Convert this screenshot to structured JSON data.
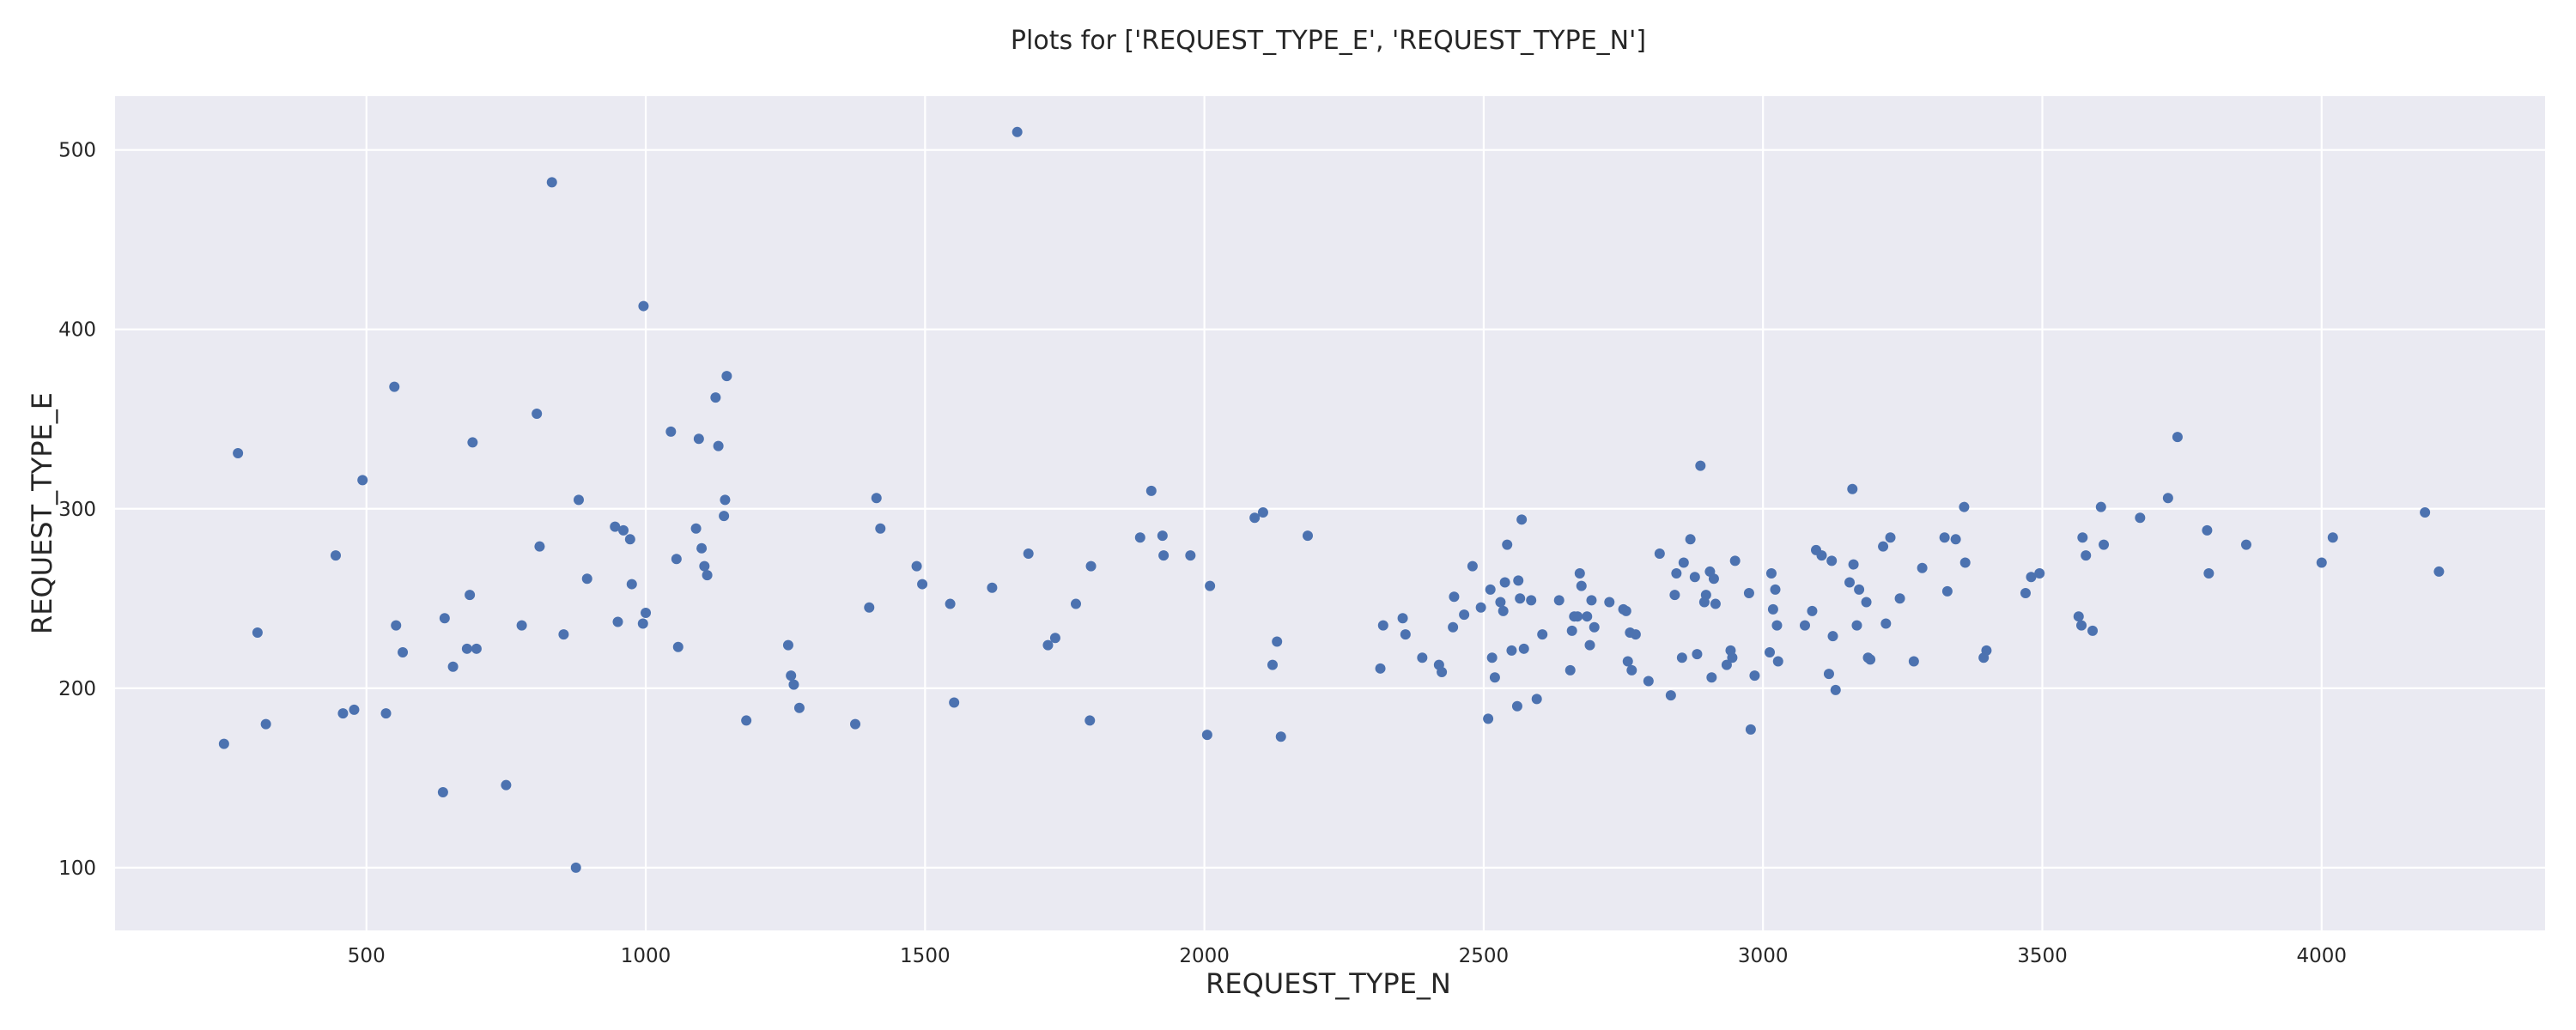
{
  "chart_data": {
    "type": "scatter",
    "title": "Plots for ['REQUEST_TYPE_E', 'REQUEST_TYPE_N']",
    "xlabel": "REQUEST_TYPE_N",
    "ylabel": "REQUEST_TYPE_E",
    "xlim": [
      50,
      4400
    ],
    "ylim": [
      65,
      530
    ],
    "xticks": [
      500,
      1000,
      1500,
      2000,
      2500,
      3000,
      3500,
      4000
    ],
    "yticks": [
      100,
      200,
      300,
      400,
      500
    ],
    "grid": true,
    "point_color": "#4c72b0",
    "background_color": "#eaeaf2",
    "points": [
      [
        245,
        169
      ],
      [
        270,
        331
      ],
      [
        305,
        231
      ],
      [
        320,
        180
      ],
      [
        445,
        274
      ],
      [
        458,
        186
      ],
      [
        478,
        188
      ],
      [
        493,
        316
      ],
      [
        535,
        186
      ],
      [
        550,
        368
      ],
      [
        553,
        235
      ],
      [
        565,
        220
      ],
      [
        637,
        142
      ],
      [
        640,
        239
      ],
      [
        655,
        212
      ],
      [
        680,
        222
      ],
      [
        685,
        252
      ],
      [
        690,
        337
      ],
      [
        697,
        222
      ],
      [
        750,
        146
      ],
      [
        778,
        235
      ],
      [
        805,
        353
      ],
      [
        810,
        279
      ],
      [
        832,
        482
      ],
      [
        853,
        230
      ],
      [
        875,
        100
      ],
      [
        880,
        305
      ],
      [
        895,
        261
      ],
      [
        945,
        290
      ],
      [
        950,
        237
      ],
      [
        960,
        288
      ],
      [
        972,
        283
      ],
      [
        975,
        258
      ],
      [
        995,
        236
      ],
      [
        996,
        413
      ],
      [
        1000,
        242
      ],
      [
        1045,
        343
      ],
      [
        1055,
        272
      ],
      [
        1058,
        223
      ],
      [
        1090,
        289
      ],
      [
        1095,
        339
      ],
      [
        1100,
        278
      ],
      [
        1105,
        268
      ],
      [
        1110,
        263
      ],
      [
        1125,
        362
      ],
      [
        1130,
        335
      ],
      [
        1140,
        296
      ],
      [
        1142,
        305
      ],
      [
        1145,
        374
      ],
      [
        1180,
        182
      ],
      [
        1255,
        224
      ],
      [
        1260,
        207
      ],
      [
        1265,
        202
      ],
      [
        1275,
        189
      ],
      [
        1375,
        180
      ],
      [
        1400,
        245
      ],
      [
        1413,
        306
      ],
      [
        1420,
        289
      ],
      [
        1485,
        268
      ],
      [
        1495,
        258
      ],
      [
        1545,
        247
      ],
      [
        1552,
        192
      ],
      [
        1620,
        256
      ],
      [
        1665,
        510
      ],
      [
        1685,
        275
      ],
      [
        1720,
        224
      ],
      [
        1733,
        228
      ],
      [
        1770,
        247
      ],
      [
        1795,
        182
      ],
      [
        1797,
        268
      ],
      [
        1885,
        284
      ],
      [
        1905,
        310
      ],
      [
        1925,
        285
      ],
      [
        1927,
        274
      ],
      [
        1975,
        274
      ],
      [
        2005,
        174
      ],
      [
        2010,
        257
      ],
      [
        2090,
        295
      ],
      [
        2105,
        298
      ],
      [
        2122,
        213
      ],
      [
        2130,
        226
      ],
      [
        2137,
        173
      ],
      [
        2185,
        285
      ],
      [
        2315,
        211
      ],
      [
        2320,
        235
      ],
      [
        2355,
        239
      ],
      [
        2360,
        230
      ],
      [
        2390,
        217
      ],
      [
        2420,
        213
      ],
      [
        2425,
        209
      ],
      [
        2445,
        234
      ],
      [
        2447,
        251
      ],
      [
        2465,
        241
      ],
      [
        2480,
        268
      ],
      [
        2495,
        245
      ],
      [
        2508,
        183
      ],
      [
        2512,
        255
      ],
      [
        2515,
        217
      ],
      [
        2520,
        206
      ],
      [
        2530,
        248
      ],
      [
        2535,
        243
      ],
      [
        2538,
        259
      ],
      [
        2542,
        280
      ],
      [
        2550,
        221
      ],
      [
        2560,
        190
      ],
      [
        2562,
        260
      ],
      [
        2565,
        250
      ],
      [
        2568,
        294
      ],
      [
        2572,
        222
      ],
      [
        2585,
        249
      ],
      [
        2595,
        194
      ],
      [
        2605,
        230
      ],
      [
        2635,
        249
      ],
      [
        2655,
        210
      ],
      [
        2658,
        232
      ],
      [
        2662,
        240
      ],
      [
        2668,
        240
      ],
      [
        2672,
        264
      ],
      [
        2675,
        257
      ],
      [
        2685,
        240
      ],
      [
        2690,
        224
      ],
      [
        2693,
        249
      ],
      [
        2698,
        234
      ],
      [
        2725,
        248
      ],
      [
        2750,
        244
      ],
      [
        2755,
        243
      ],
      [
        2758,
        215
      ],
      [
        2762,
        231
      ],
      [
        2765,
        210
      ],
      [
        2772,
        230
      ],
      [
        2795,
        204
      ],
      [
        2815,
        275
      ],
      [
        2835,
        196
      ],
      [
        2842,
        252
      ],
      [
        2845,
        264
      ],
      [
        2855,
        217
      ],
      [
        2858,
        270
      ],
      [
        2870,
        283
      ],
      [
        2878,
        262
      ],
      [
        2882,
        219
      ],
      [
        2888,
        324
      ],
      [
        2895,
        248
      ],
      [
        2898,
        252
      ],
      [
        2905,
        265
      ],
      [
        2908,
        206
      ],
      [
        2912,
        261
      ],
      [
        2915,
        247
      ],
      [
        2935,
        213
      ],
      [
        2942,
        221
      ],
      [
        2945,
        217
      ],
      [
        2950,
        271
      ],
      [
        2975,
        253
      ],
      [
        2978,
        177
      ],
      [
        2985,
        207
      ],
      [
        3012,
        220
      ],
      [
        3015,
        264
      ],
      [
        3018,
        244
      ],
      [
        3022,
        255
      ],
      [
        3025,
        235
      ],
      [
        3027,
        215
      ],
      [
        3075,
        235
      ],
      [
        3088,
        243
      ],
      [
        3095,
        277
      ],
      [
        3105,
        274
      ],
      [
        3118,
        208
      ],
      [
        3123,
        271
      ],
      [
        3125,
        229
      ],
      [
        3130,
        199
      ],
      [
        3155,
        259
      ],
      [
        3160,
        311
      ],
      [
        3162,
        269
      ],
      [
        3168,
        235
      ],
      [
        3172,
        255
      ],
      [
        3185,
        248
      ],
      [
        3188,
        217
      ],
      [
        3192,
        216
      ],
      [
        3215,
        279
      ],
      [
        3220,
        236
      ],
      [
        3228,
        284
      ],
      [
        3245,
        250
      ],
      [
        3270,
        215
      ],
      [
        3285,
        267
      ],
      [
        3325,
        284
      ],
      [
        3330,
        254
      ],
      [
        3345,
        283
      ],
      [
        3360,
        301
      ],
      [
        3362,
        270
      ],
      [
        3395,
        217
      ],
      [
        3400,
        221
      ],
      [
        3470,
        253
      ],
      [
        3480,
        262
      ],
      [
        3495,
        264
      ],
      [
        3565,
        240
      ],
      [
        3570,
        235
      ],
      [
        3572,
        284
      ],
      [
        3578,
        274
      ],
      [
        3590,
        232
      ],
      [
        3605,
        301
      ],
      [
        3610,
        280
      ],
      [
        3675,
        295
      ],
      [
        3725,
        306
      ],
      [
        3742,
        340
      ],
      [
        3795,
        288
      ],
      [
        3798,
        264
      ],
      [
        3865,
        280
      ],
      [
        4000,
        270
      ],
      [
        4020,
        284
      ],
      [
        4185,
        298
      ],
      [
        4210,
        265
      ]
    ]
  }
}
